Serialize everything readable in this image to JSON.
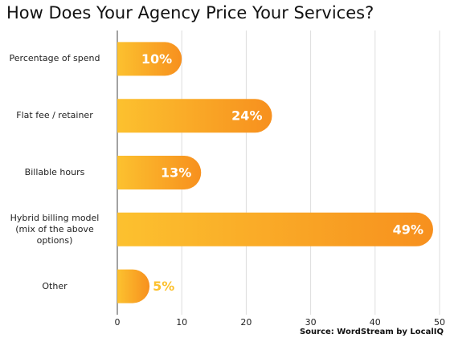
{
  "chart_data": {
    "type": "hbar",
    "title": "How Does Your Agency Price Your Services?",
    "categories": [
      "Percentage of spend",
      "Flat fee / retainer",
      "Billable hours",
      "Hybrid billing model\n(mix of the above options)",
      "Other"
    ],
    "values": [
      10,
      24,
      13,
      49,
      5
    ],
    "value_labels": [
      "10%",
      "24%",
      "13%",
      "49%",
      "5%"
    ],
    "colors": [
      "#fcc12f",
      "#f7901e"
    ],
    "xlim": [
      0,
      50
    ],
    "xticks": [
      0,
      10,
      20,
      30,
      40,
      50
    ],
    "grid": true,
    "source": "Source: WordStream by LocalIQ"
  }
}
